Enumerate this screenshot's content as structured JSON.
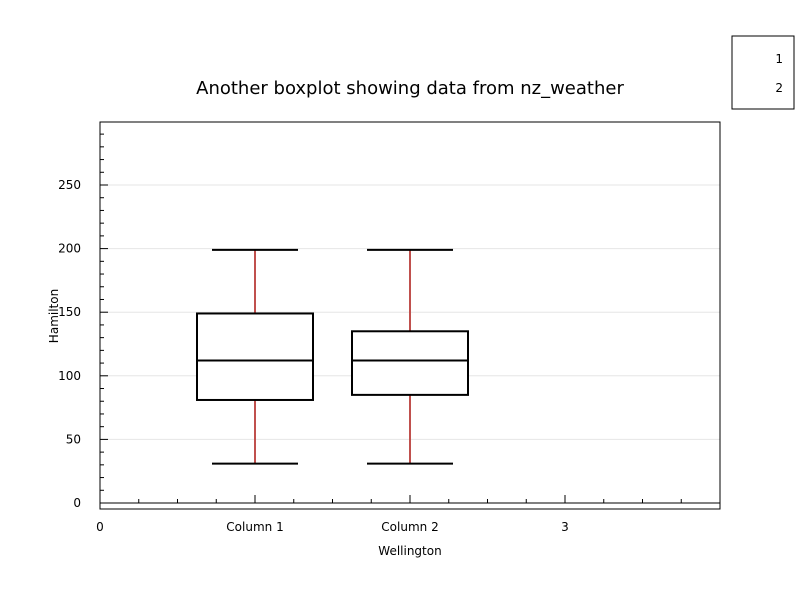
{
  "chart_data": {
    "type": "boxplot",
    "title": "Another  boxplot showing data from nz_weather",
    "xlabel": "Wellington",
    "ylabel": "Hamilton",
    "x_range": [
      0,
      4
    ],
    "ylim": [
      -5,
      300
    ],
    "x_tick_labels": [
      {
        "x": 0,
        "label": "0"
      },
      {
        "x": 1,
        "label": "Column 1"
      },
      {
        "x": 2,
        "label": "Column 2"
      },
      {
        "x": 3,
        "label": "3"
      }
    ],
    "y_ticks": [
      0,
      50,
      100,
      150,
      200,
      250
    ],
    "y_gridlines": [
      50,
      100,
      150,
      200,
      250
    ],
    "grid": true,
    "legend": {
      "placement": "outside-top-right",
      "entries": [
        "1",
        "2"
      ]
    },
    "boxes": [
      {
        "x": 1,
        "whisker_low": 31,
        "q1": 81,
        "median": 112,
        "q3": 149,
        "whisker_high": 199
      },
      {
        "x": 2,
        "whisker_low": 31,
        "q1": 85,
        "median": 112,
        "q3": 135,
        "whisker_high": 199
      }
    ],
    "colors": {
      "box": "#000000",
      "whisker": "#c0504d",
      "grid": "#e6e6e6",
      "axis": "#000000"
    }
  }
}
